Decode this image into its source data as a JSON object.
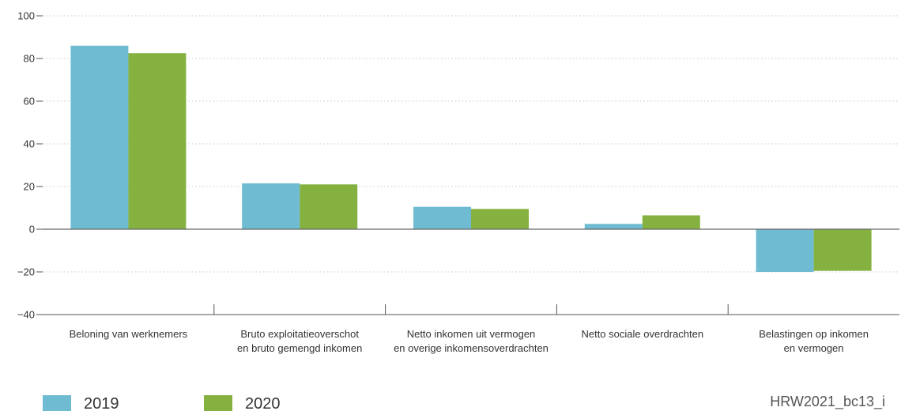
{
  "chart_data": {
    "type": "bar",
    "categories": [
      [
        "Beloning van werknemers"
      ],
      [
        "Bruto exploitatieoverschot",
        "en bruto gemengd inkomen"
      ],
      [
        "Netto inkomen uit vermogen",
        "en overige inkomensoverdrachten"
      ],
      [
        "Netto sociale overdrachten"
      ],
      [
        "Belastingen op inkomen",
        "en vermogen"
      ]
    ],
    "series": [
      {
        "name": "2019",
        "color": "#6fbcd2",
        "values": [
          86,
          21.5,
          10.5,
          2.5,
          -20
        ]
      },
      {
        "name": "2020",
        "color": "#84b140",
        "values": [
          82.5,
          21,
          9.5,
          6.5,
          -19.5
        ]
      }
    ],
    "yticks": [
      100,
      80,
      60,
      40,
      20,
      0,
      -20,
      -40
    ],
    "ytick_labels": [
      "100",
      "80",
      "60",
      "40",
      "20",
      "0",
      "−20",
      "−40"
    ],
    "ylim": [
      -40,
      100
    ],
    "grid": true,
    "legend_position": "bottom-left",
    "title": "",
    "xlabel": "",
    "ylabel": ""
  },
  "footer": {
    "code": "HRW2021_bc13_i"
  }
}
